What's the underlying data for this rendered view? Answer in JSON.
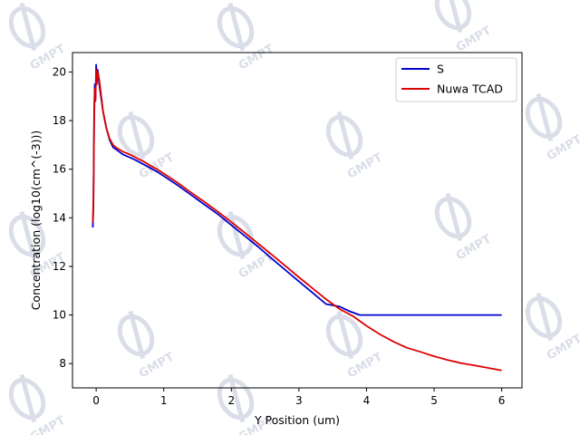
{
  "watermark": {
    "text": "GMPT",
    "color": "#d7dbe6"
  },
  "chart_data": {
    "type": "line",
    "xlabel": "Y Position (um)",
    "ylabel": "Concentration (log10(cm^(-3)))",
    "xlim": [
      -0.35,
      6.3
    ],
    "ylim": [
      7.0,
      20.8
    ],
    "xticks": [
      0,
      1,
      2,
      3,
      4,
      5,
      6
    ],
    "yticks": [
      8,
      10,
      12,
      14,
      16,
      18,
      20
    ],
    "grid": false,
    "legend_position": "top-right",
    "series": [
      {
        "name": "S",
        "color": "#0000cc",
        "x": [
          -0.05,
          -0.04,
          -0.03,
          -0.02,
          -0.01,
          0.0,
          0.01,
          0.02,
          0.03,
          0.05,
          0.08,
          0.1,
          0.15,
          0.2,
          0.25,
          0.3,
          0.4,
          0.5,
          0.6,
          0.7,
          0.8,
          0.9,
          1.0,
          1.2,
          1.4,
          1.6,
          1.8,
          2.0,
          2.2,
          2.4,
          2.6,
          2.8,
          3.0,
          3.2,
          3.4,
          3.6,
          3.75,
          3.9,
          4.5,
          5.0,
          5.5,
          6.0
        ],
        "y": [
          13.6,
          14.5,
          18.4,
          19.5,
          18.9,
          20.3,
          19.7,
          20.1,
          19.9,
          19.4,
          18.8,
          18.4,
          17.7,
          17.2,
          16.9,
          16.8,
          16.6,
          16.48,
          16.35,
          16.2,
          16.05,
          15.9,
          15.72,
          15.35,
          14.95,
          14.55,
          14.15,
          13.7,
          13.25,
          12.8,
          12.32,
          11.85,
          11.38,
          10.92,
          10.45,
          10.35,
          10.15,
          10.0,
          10.0,
          10.0,
          10.0,
          10.0
        ]
      },
      {
        "name": "Nuwa TCAD",
        "color": "#dd0000",
        "x": [
          -0.05,
          -0.04,
          -0.03,
          -0.02,
          -0.01,
          0.0,
          0.01,
          0.02,
          0.03,
          0.05,
          0.08,
          0.1,
          0.15,
          0.2,
          0.25,
          0.3,
          0.4,
          0.5,
          0.6,
          0.7,
          0.8,
          0.9,
          1.0,
          1.2,
          1.4,
          1.6,
          1.8,
          2.0,
          2.2,
          2.4,
          2.6,
          2.8,
          3.0,
          3.2,
          3.4,
          3.6,
          3.8,
          4.0,
          4.2,
          4.4,
          4.6,
          4.8,
          5.0,
          5.2,
          5.4,
          5.6,
          5.8,
          6.0
        ],
        "y": [
          13.8,
          14.8,
          18.0,
          19.3,
          18.8,
          20.1,
          19.5,
          19.9,
          19.95,
          19.6,
          18.9,
          18.4,
          17.7,
          17.25,
          17.0,
          16.88,
          16.72,
          16.6,
          16.46,
          16.32,
          16.15,
          16.0,
          15.82,
          15.45,
          15.05,
          14.66,
          14.25,
          13.82,
          13.38,
          12.93,
          12.48,
          12.02,
          11.55,
          11.1,
          10.65,
          10.25,
          9.95,
          9.55,
          9.2,
          8.9,
          8.65,
          8.48,
          8.3,
          8.15,
          8.02,
          7.92,
          7.82,
          7.72
        ]
      }
    ]
  }
}
